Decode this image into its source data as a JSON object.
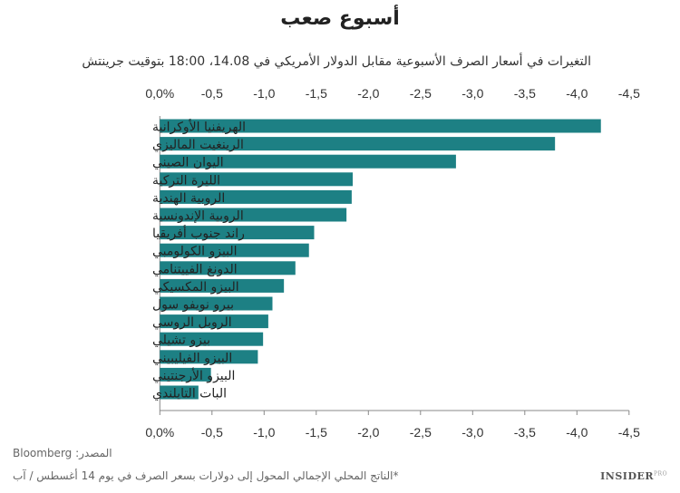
{
  "chart_data": {
    "type": "bar",
    "orientation": "horizontal",
    "title": "أسبوع صعب",
    "subtitle": "التغيرات في أسعار الصرف الأسبوعية مقابل الدولار الأمريكي في 14.08، 18:00 بتوقيت جرينتش",
    "categories": [
      "الهريفنيا الأوكرانية",
      "الرينغيت الماليزي",
      "اليوان الصيني",
      "الليرة التركية",
      "الروبية الهندية",
      "الروبية الإندونسية",
      "راند جنوب أفريقيا",
      "البيزو الكولومبي",
      "الدونغ الفييتنامي",
      "البيزو المكسيكي",
      "بيرو نويفو سول",
      "الروبل الروسي",
      "بيزو تشيلي",
      "البيزو الفيليبيني",
      "البيزو الأرجنتيني",
      "البات التايلندي"
    ],
    "values": [
      -4.23,
      -3.79,
      -2.84,
      -1.85,
      -1.84,
      -1.79,
      -1.48,
      -1.43,
      -1.3,
      -1.19,
      -1.08,
      -1.04,
      -0.99,
      -0.94,
      -0.49,
      -0.37
    ],
    "xlim": [
      0,
      -4.5
    ],
    "tick_labels": [
      "0,0%",
      "-0,5",
      "-1,0",
      "-1,5",
      "-2,0",
      "-2,5",
      "-3,0",
      "-3,5",
      "-4,0",
      "-4,5"
    ],
    "tick_values": [
      0,
      -0.5,
      -1,
      -1.5,
      -2,
      -2.5,
      -3,
      -3.5,
      -4,
      -4.5
    ],
    "axis_position": "top and bottom",
    "grid": false,
    "bar_color": "#1d8084"
  },
  "footer": {
    "source": "المصدر: Bloomberg",
    "note": "*الناتج المحلي الإجمالي المحول إلى دولارات بسعر الصرف في يوم 14 أغسطس / آب",
    "logo": "INSIDER",
    "logo_sup": "PRO"
  }
}
